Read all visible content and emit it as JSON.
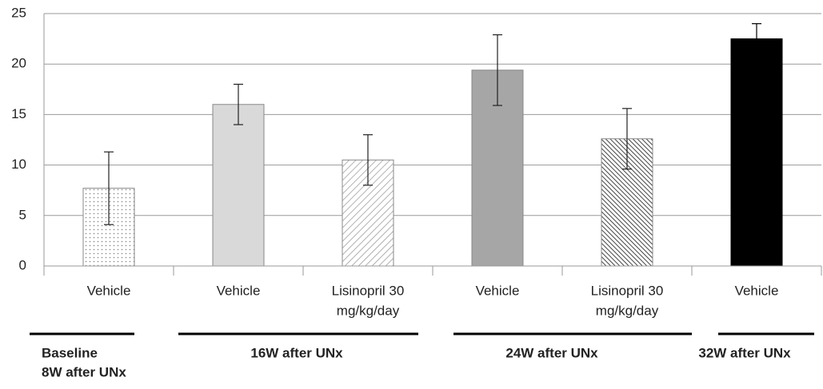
{
  "chart_data": {
    "type": "bar",
    "categories": [
      [
        "Vehicle"
      ],
      [
        "Vehicle"
      ],
      [
        "Lisinopril 30",
        "mg/kg/day"
      ],
      [
        "Vehicle"
      ],
      [
        "Lisinopril 30",
        "mg/kg/day"
      ],
      [
        "Vehicle"
      ]
    ],
    "values": [
      7.7,
      16,
      10.5,
      19.4,
      12.6,
      22.5
    ],
    "errors": [
      3.6,
      2,
      2.5,
      3.5,
      3,
      1.5
    ],
    "colors": [
      "#ffffff",
      "#d9d9d9",
      "#ffffff",
      "#a6a6a6",
      "#ffffff",
      "#000000"
    ],
    "patterns": [
      "dots",
      "none",
      "hatch",
      "none",
      "dense-hatch",
      "none"
    ],
    "groups": [
      {
        "lines": [
          "Baseline",
          "8W after UNx"
        ],
        "count": 1
      },
      {
        "lines": [
          "16W after UNx"
        ],
        "count": 2
      },
      {
        "lines": [
          "24W after UNx"
        ],
        "count": 2
      },
      {
        "lines": [
          "32W after UNx"
        ],
        "count": 1
      }
    ],
    "ylim": [
      0,
      25
    ],
    "yticks": [
      0,
      5,
      10,
      15,
      20,
      25
    ],
    "grid": true
  }
}
